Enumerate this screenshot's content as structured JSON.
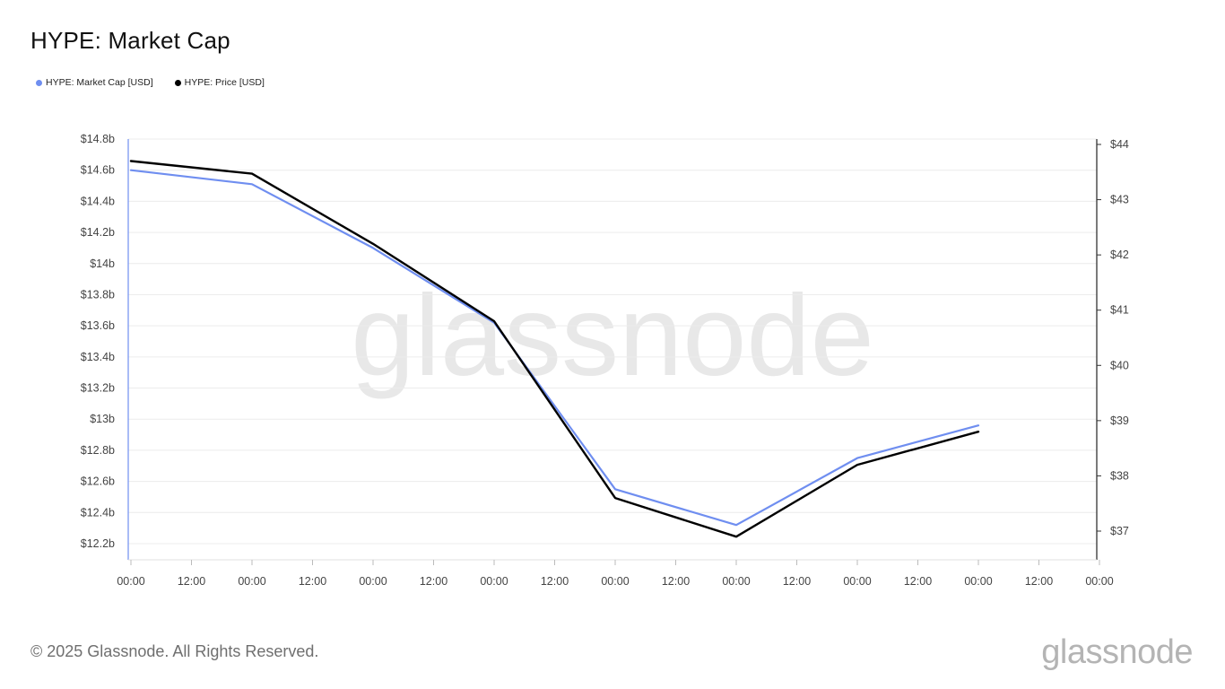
{
  "page": {
    "title": "HYPE: Market Cap",
    "footer_copyright": "© 2025 Glassnode. All Rights Reserved.",
    "footer_logo": "glassnode",
    "watermark": "glassnode"
  },
  "legend": [
    {
      "label": "HYPE: Market Cap [USD]",
      "color": "#6f8ef0"
    },
    {
      "label": "HYPE: Price [USD]",
      "color": "#000000"
    }
  ],
  "chart_data": {
    "type": "line",
    "title": "HYPE: Market Cap",
    "x_tick_labels": [
      "00:00",
      "12:00",
      "00:00",
      "12:00",
      "00:00",
      "12:00",
      "00:00",
      "12:00",
      "00:00",
      "12:00",
      "00:00",
      "12:00",
      "00:00",
      "12:00",
      "00:00",
      "12:00",
      "00:00"
    ],
    "y_left": {
      "tick_labels": [
        "$14.8b",
        "$14.6b",
        "$14.4b",
        "$14.2b",
        "$14b",
        "$13.8b",
        "$13.6b",
        "$13.4b",
        "$13.2b",
        "$13b",
        "$12.8b",
        "$12.6b",
        "$12.4b",
        "$12.2b"
      ],
      "ylim": [
        12.1,
        14.8
      ],
      "unit": "billion USD"
    },
    "y_right": {
      "tick_labels": [
        "$44",
        "$43",
        "$42",
        "$41",
        "$40",
        "$39",
        "$38",
        "$37"
      ],
      "ylim": [
        36.5,
        44
      ],
      "unit": "USD"
    },
    "series": [
      {
        "name": "HYPE: Market Cap [USD]",
        "axis": "left",
        "color": "#6f8ef0",
        "x": [
          0,
          2,
          4,
          6,
          8,
          10,
          12,
          14
        ],
        "values": [
          14.6,
          14.51,
          14.1,
          13.62,
          12.55,
          12.32,
          12.75,
          12.96
        ]
      },
      {
        "name": "HYPE: Price [USD]",
        "axis": "right",
        "color": "#000000",
        "x": [
          0,
          2,
          4,
          6,
          8,
          10,
          12,
          14
        ],
        "values": [
          43.7,
          43.47,
          42.2,
          40.8,
          37.6,
          36.9,
          38.2,
          38.8
        ]
      }
    ]
  }
}
